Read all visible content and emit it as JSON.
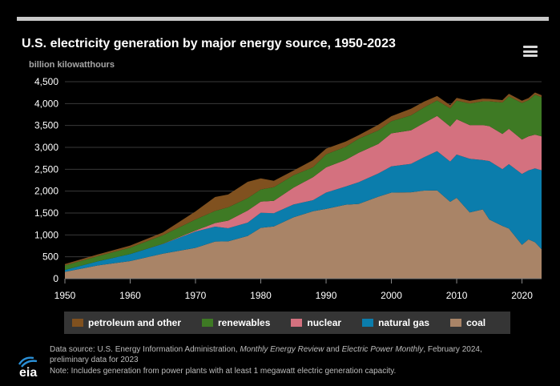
{
  "chart_data": {
    "type": "area",
    "stacked": true,
    "title": "U.S. electricity generation by major energy source, 1950-2023",
    "ylabel": "billion kilowatthours",
    "xlabel": "",
    "ylim": [
      0,
      4500
    ],
    "xlim": [
      1950,
      2023
    ],
    "yticks": [
      "0",
      "500",
      "1,000",
      "1,500",
      "2,000",
      "2,500",
      "3,000",
      "3,500",
      "4,000",
      "4,500"
    ],
    "xticks": [
      "1950",
      "1960",
      "1970",
      "1980",
      "1990",
      "2000",
      "2010",
      "2020"
    ],
    "grid": true,
    "legend_position": "bottom",
    "x": [
      1950,
      1955,
      1960,
      1965,
      1970,
      1973,
      1975,
      1978,
      1980,
      1982,
      1985,
      1988,
      1990,
      1993,
      1995,
      1998,
      2000,
      2003,
      2005,
      2007,
      2009,
      2010,
      2012,
      2014,
      2015,
      2017,
      2018,
      2020,
      2021,
      2022,
      2023
    ],
    "series": [
      {
        "name": "coal",
        "color": "#a98467",
        "values": [
          155,
          301,
          403,
          571,
          704,
          848,
          853,
          976,
          1162,
          1192,
          1402,
          1541,
          1594,
          1690,
          1709,
          1873,
          1966,
          1974,
          2013,
          2016,
          1756,
          1847,
          1514,
          1582,
          1352,
          1206,
          1146,
          773,
          898,
          832,
          675
        ]
      },
      {
        "name": "natural gas",
        "color": "#0b7dac",
        "values": [
          45,
          95,
          158,
          222,
          373,
          341,
          300,
          305,
          346,
          305,
          292,
          252,
          372,
          415,
          496,
          531,
          601,
          650,
          761,
          897,
          921,
          988,
          1226,
          1127,
          1335,
          1297,
          1469,
          1617,
          1575,
          1687,
          1802
        ]
      },
      {
        "name": "nuclear",
        "color": "#d4717f",
        "values": [
          0,
          0,
          1,
          4,
          22,
          83,
          173,
          276,
          251,
          283,
          384,
          527,
          577,
          610,
          673,
          673,
          754,
          764,
          782,
          806,
          799,
          807,
          769,
          797,
          797,
          805,
          807,
          790,
          778,
          772,
          775
        ]
      },
      {
        "name": "renewables",
        "color": "#3e7a24",
        "values": [
          101,
          117,
          148,
          196,
          252,
          275,
          304,
          283,
          279,
          309,
          284,
          224,
          297,
          300,
          321,
          309,
          275,
          343,
          357,
          352,
          417,
          427,
          494,
          546,
          567,
          716,
          742,
          834,
          826,
          913,
          894
        ]
      },
      {
        "name": "petroleum and other",
        "color": "#80511f",
        "values": [
          34,
          40,
          48,
          65,
          185,
          318,
          293,
          373,
          253,
          149,
          107,
          163,
          131,
          117,
          81,
          130,
          116,
          152,
          131,
          101,
          71,
          62,
          60,
          59,
          55,
          56,
          59,
          50,
          48,
          49,
          45
        ]
      }
    ]
  },
  "legend": [
    {
      "label": "petroleum and other",
      "color": "#80511f"
    },
    {
      "label": "renewables",
      "color": "#3e7a24"
    },
    {
      "label": "nuclear",
      "color": "#d4717f"
    },
    {
      "label": "natural gas",
      "color": "#0b7dac"
    },
    {
      "label": "coal",
      "color": "#a98467"
    }
  ],
  "footer": {
    "line1_a": "Data source: U.S. Energy Information Administration, ",
    "line1_b": "Monthly Energy Review",
    "line1_c": " and ",
    "line1_d": "Electric Power Monthly",
    "line1_e": ", February 2024,",
    "line2": "preliminary data for 2023",
    "line3": "Note: Includes generation from power plants with at least 1 megawatt electric generation capacity."
  },
  "logo": {
    "text": "eia",
    "icon": "eia-logo-icon"
  },
  "menu": {
    "icon": "hamburger-menu-icon"
  }
}
